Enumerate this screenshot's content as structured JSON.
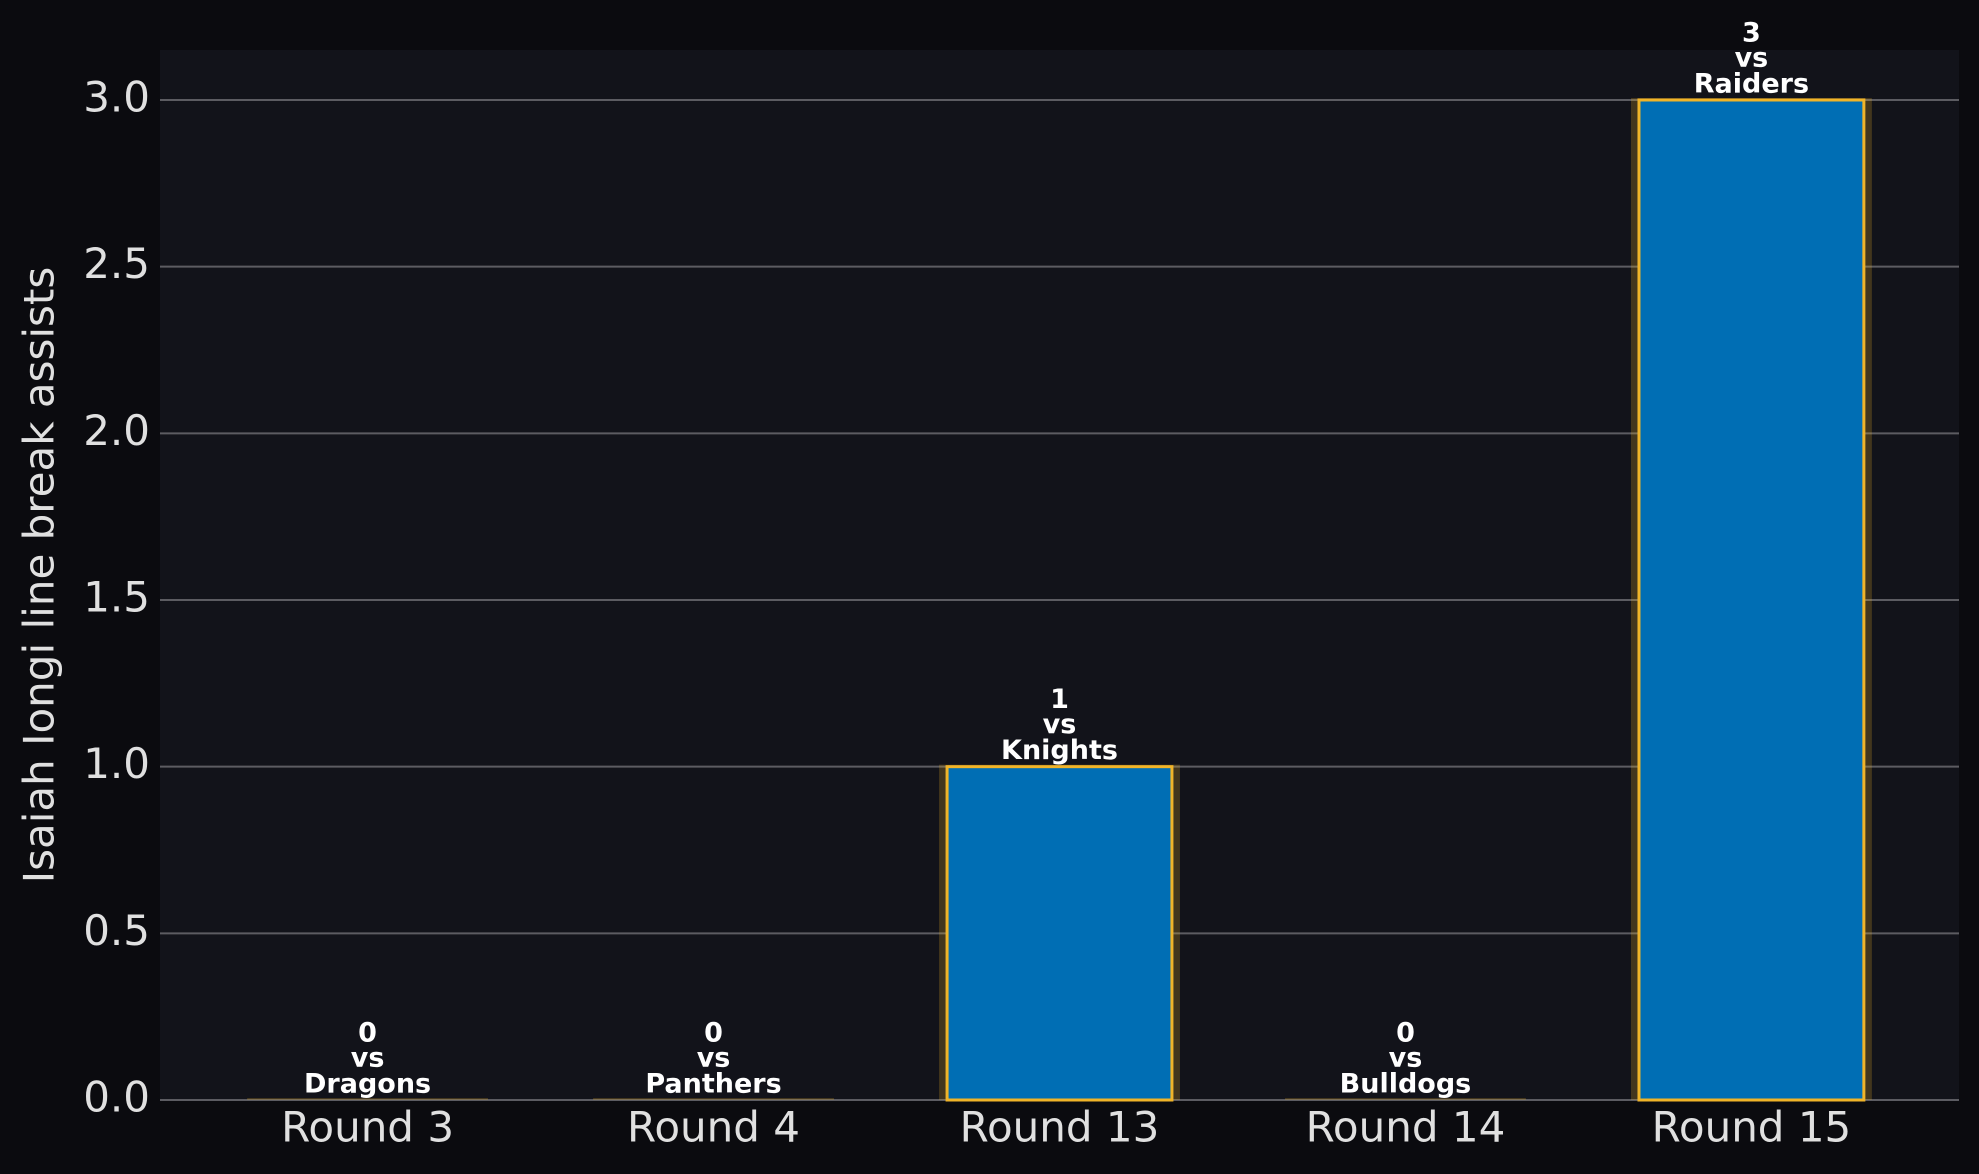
{
  "chart_data": {
    "type": "bar",
    "y_label": "Isaiah Iongi line break assists",
    "categories": [
      "Round 3",
      "Round 4",
      "Round 13",
      "Round 14",
      "Round 15"
    ],
    "values": [
      0,
      0,
      1,
      0,
      3
    ],
    "label_prefix": "vs",
    "opponents": [
      "Dragons",
      "Panthers",
      "Knights",
      "Bulldogs",
      "Raiders"
    ],
    "color": "#006eb4",
    "edge_color": "#f0b429",
    "ylim": [
      0,
      3.15
    ],
    "yticks": [
      {
        "value": 0,
        "label": "0.0"
      },
      {
        "value": 0.5,
        "label": "0.5"
      },
      {
        "value": 1,
        "label": "1.0"
      },
      {
        "value": 1.5,
        "label": "1.5"
      },
      {
        "value": 2,
        "label": "2.0"
      },
      {
        "value": 2.5,
        "label": "2.5"
      },
      {
        "value": 3,
        "label": "3.0"
      }
    ],
    "grid": true
  }
}
